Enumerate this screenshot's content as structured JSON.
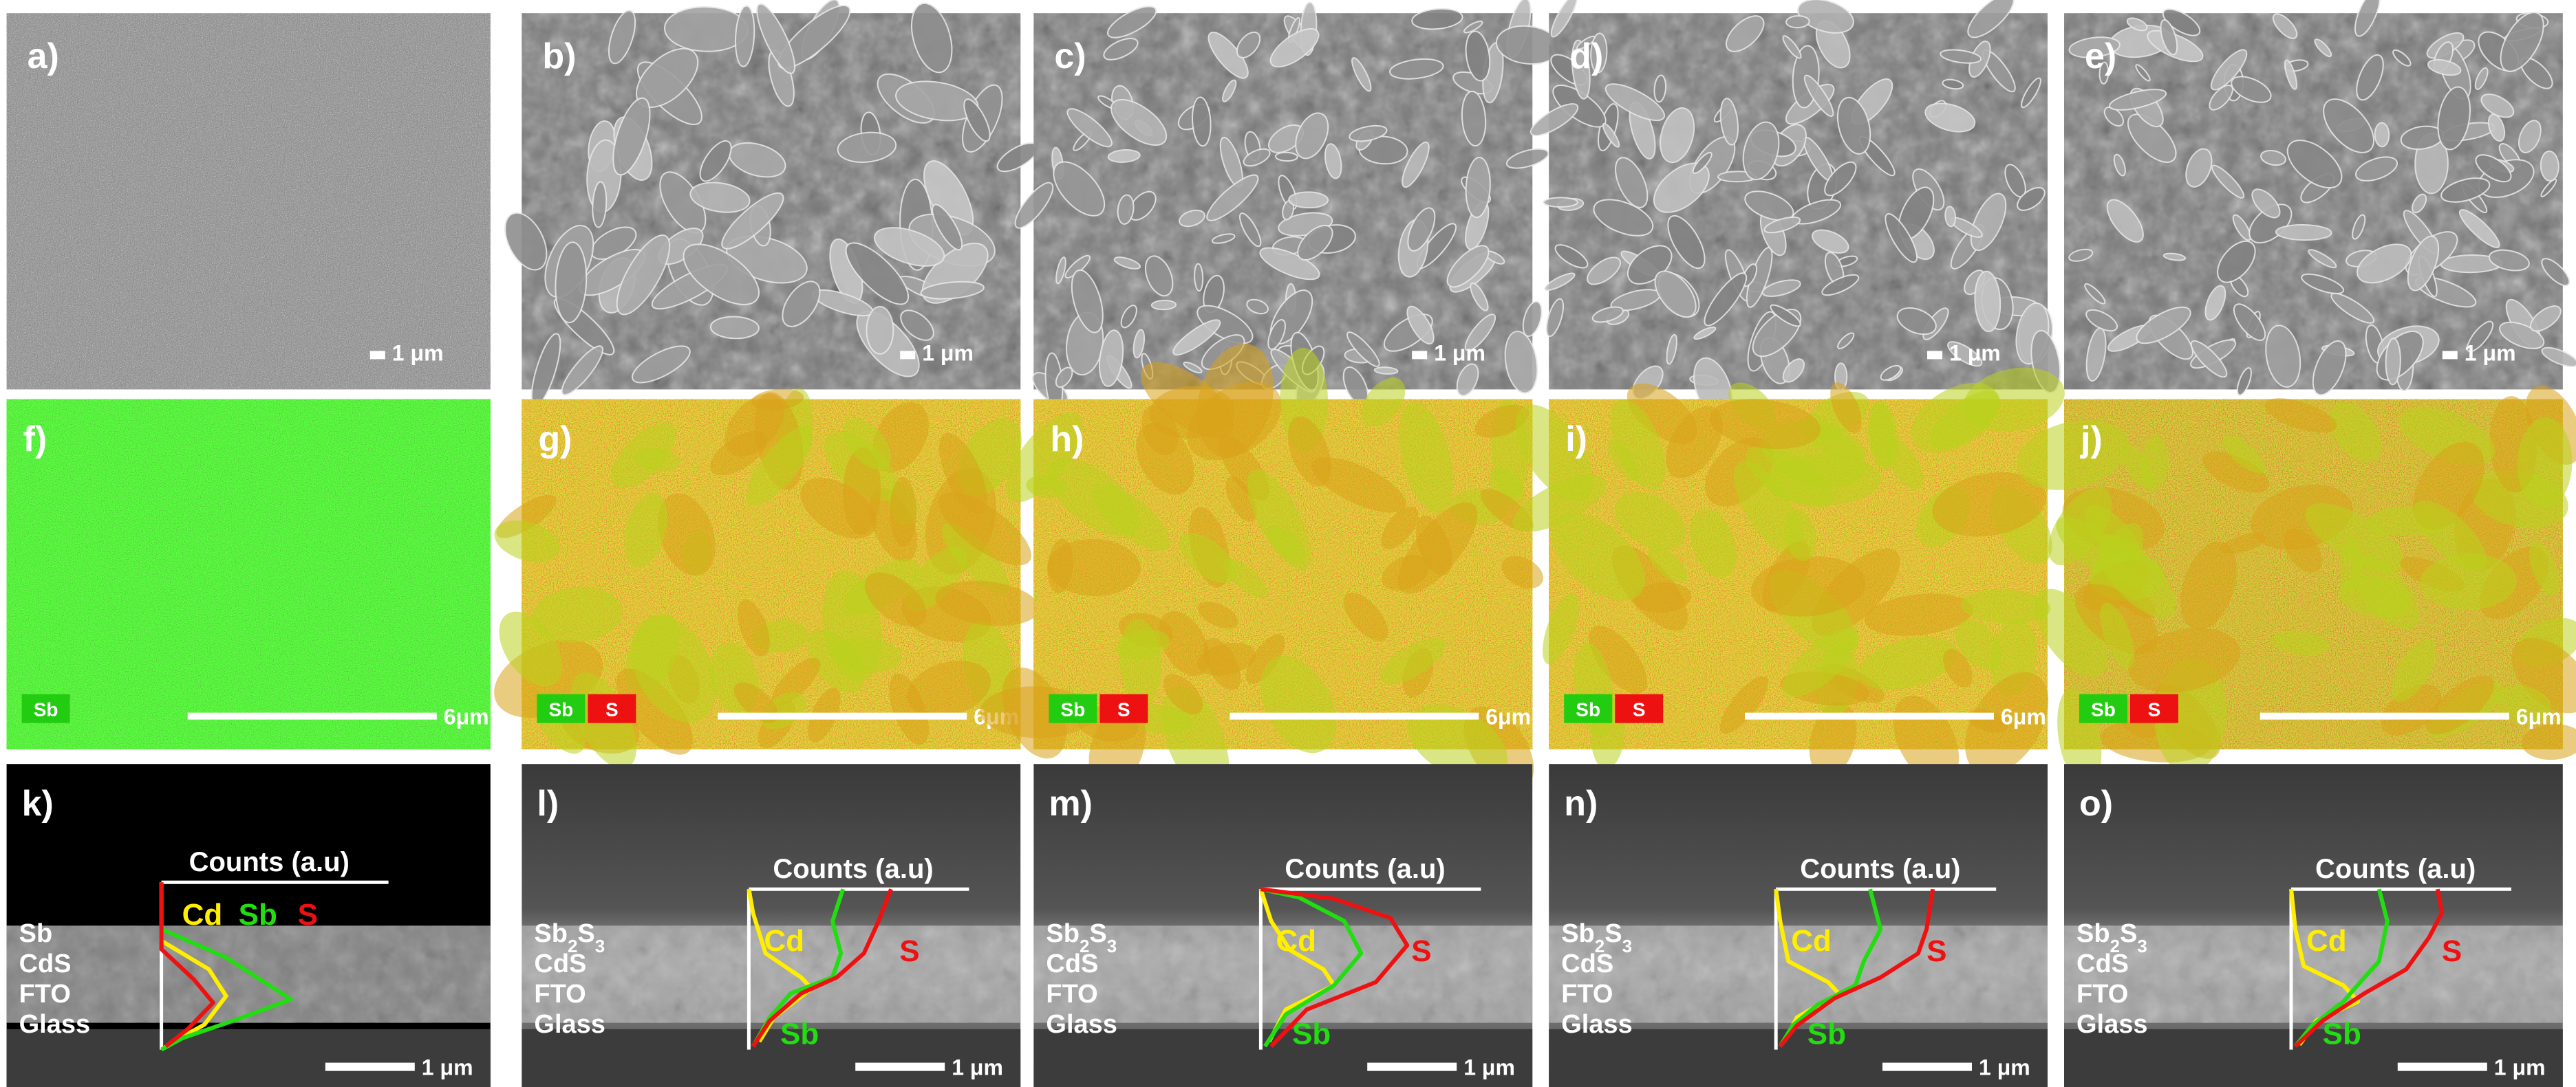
{
  "colors": {
    "cd": "#ffee00",
    "sb": "#22dd11",
    "s": "#ee1111",
    "sem_bg": "#7a7a7a",
    "eds_sb": "#33dd22",
    "eds_s": "#ee3322",
    "chip_sb": "#22cc11",
    "chip_s": "#ee1111"
  },
  "row1": {
    "panels": [
      {
        "label": "a)",
        "scale": "1 μm"
      },
      {
        "label": "b)",
        "scale": "1 μm"
      },
      {
        "label": "c)",
        "scale": "1 μm"
      },
      {
        "label": "d)",
        "scale": "1 μm"
      },
      {
        "label": "e)",
        "scale": "1 μm"
      }
    ]
  },
  "row2": {
    "panels": [
      {
        "label": "f)",
        "scale": "6μm",
        "chips": [
          "Sb"
        ]
      },
      {
        "label": "g)",
        "scale": "6μm",
        "chips": [
          "Sb",
          "S"
        ]
      },
      {
        "label": "h)",
        "scale": "6μm",
        "chips": [
          "Sb",
          "S"
        ]
      },
      {
        "label": "i)",
        "scale": "6μm",
        "chips": [
          "Sb",
          "S"
        ]
      },
      {
        "label": "j)",
        "scale": "6μm",
        "chips": [
          "Sb",
          "S"
        ]
      }
    ]
  },
  "row3": {
    "counts_label": "Counts (a.u)",
    "panels": [
      {
        "label": "k)",
        "scale": "1 μm",
        "layers": [
          "Sb",
          "CdS",
          "FTO",
          "Glass"
        ],
        "legend": [
          "Cd",
          "Sb",
          "S"
        ]
      },
      {
        "label": "l)",
        "scale": "1 μm",
        "layers": [
          "Sb2S3",
          "CdS",
          "FTO",
          "Glass"
        ],
        "curve_labels": [
          "Cd",
          "S",
          "Sb"
        ]
      },
      {
        "label": "m)",
        "scale": "1 μm",
        "layers": [
          "Sb2S3",
          "CdS",
          "FTO",
          "Glass"
        ],
        "curve_labels": [
          "Cd",
          "S",
          "Sb"
        ]
      },
      {
        "label": "n)",
        "scale": "1 μm",
        "layers": [
          "Sb2S3",
          "CdS",
          "FTO",
          "Glass"
        ],
        "curve_labels": [
          "Cd",
          "S",
          "Sb"
        ]
      },
      {
        "label": "o)",
        "scale": "1 μm",
        "layers": [
          "Sb2S3",
          "CdS",
          "FTO",
          "Glass"
        ],
        "curve_labels": [
          "Cd",
          "S",
          "Sb"
        ]
      }
    ]
  }
}
